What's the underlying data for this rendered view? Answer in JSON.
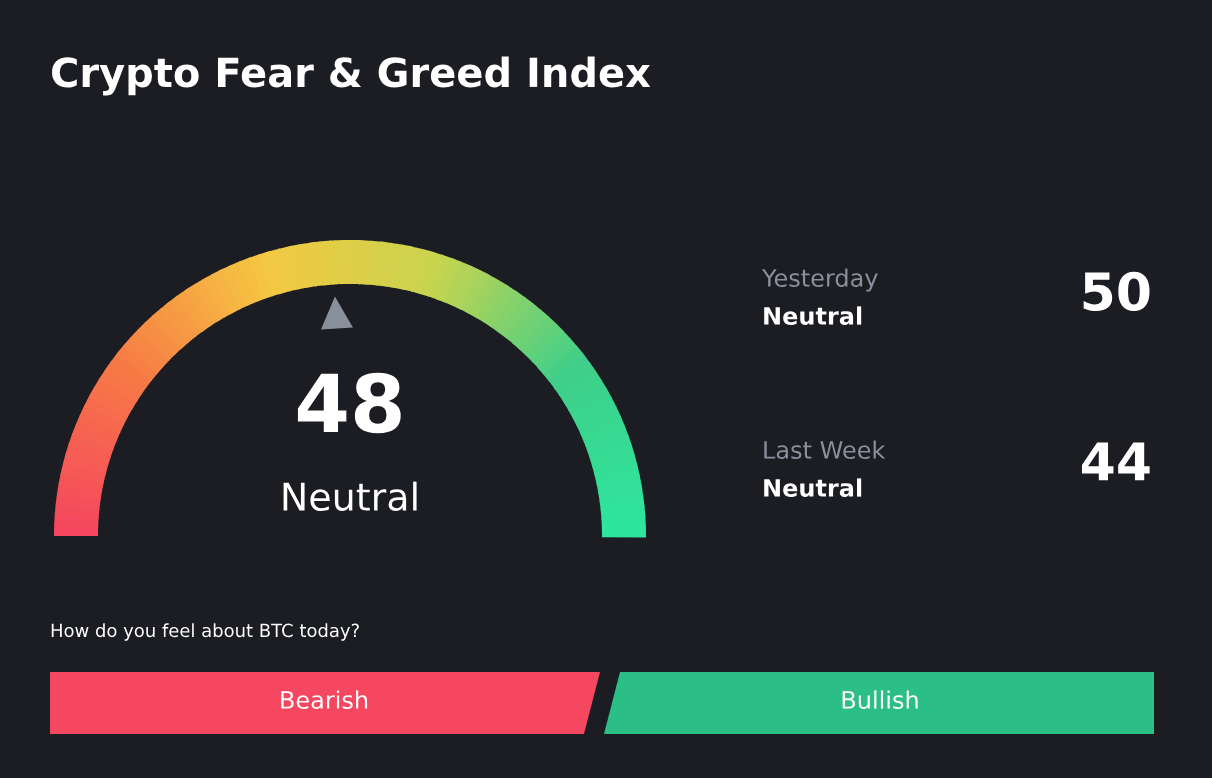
{
  "chart_data": {
    "type": "other",
    "title": "Crypto Fear & Greed Index",
    "values": [
      48
    ],
    "data_labels": true,
    "annotations": [
      "Neutral",
      "Yesterday",
      "Neutral",
      "50",
      "Last Week",
      "Neutral",
      "44",
      "How do you feel about BTC today?",
      "Bearish",
      "Bullish"
    ]
  }
}
